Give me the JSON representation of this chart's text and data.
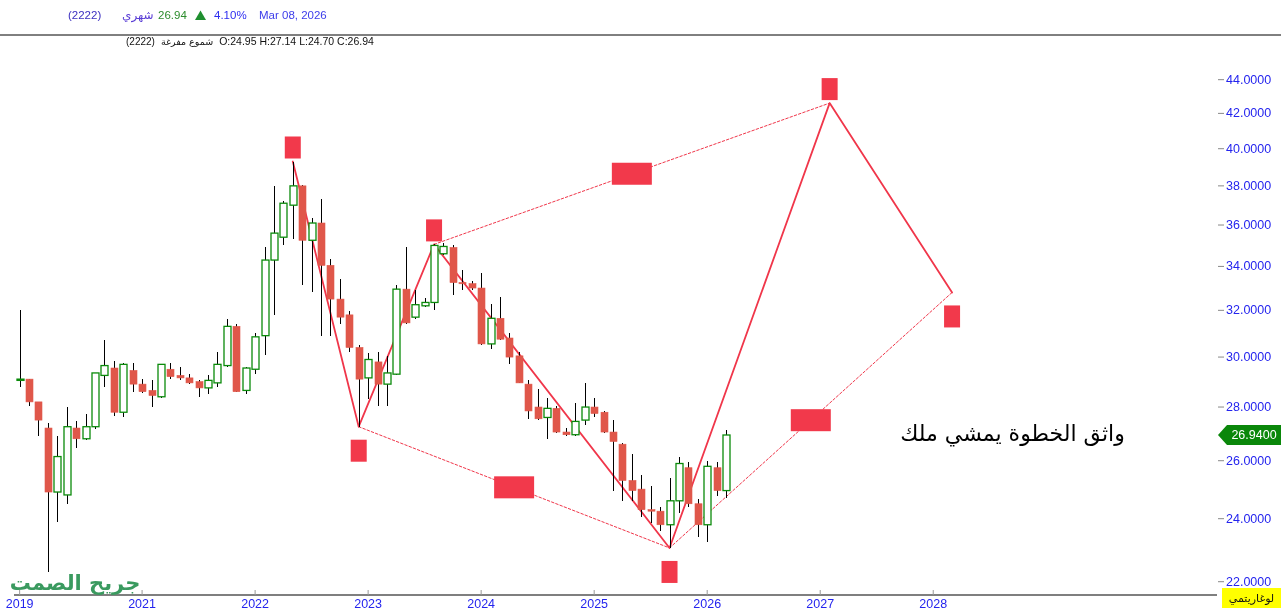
{
  "chart_data": {
    "type": "candlestick",
    "x": [
      "2019-12",
      "2020-01",
      "2020-02",
      "2020-03",
      "2020-04",
      "2020-05",
      "2020-06",
      "2020-07",
      "2020-08",
      "2020-09",
      "2020-10",
      "2020-11",
      "2020-12",
      "2021-01",
      "2021-02",
      "2021-03",
      "2021-04",
      "2021-05",
      "2021-06",
      "2021-07",
      "2021-08",
      "2021-09",
      "2021-10",
      "2021-11",
      "2021-12",
      "2022-01",
      "2022-02",
      "2022-03",
      "2022-04",
      "2022-05",
      "2022-06",
      "2022-07",
      "2022-08",
      "2022-09",
      "2022-10",
      "2022-11",
      "2022-12",
      "2023-01",
      "2023-02",
      "2023-03",
      "2023-04",
      "2023-05",
      "2023-06",
      "2023-07",
      "2023-08",
      "2023-09",
      "2023-10",
      "2023-11",
      "2023-12",
      "2024-01",
      "2024-02",
      "2024-03",
      "2024-04",
      "2024-05",
      "2024-06",
      "2024-07",
      "2024-08",
      "2024-09",
      "2024-10",
      "2024-11",
      "2024-12",
      "2025-01",
      "2025-02",
      "2025-03",
      "2025-04",
      "2025-05",
      "2025-06",
      "2025-07",
      "2025-08",
      "2025-09",
      "2025-10",
      "2025-11",
      "2025-12",
      "2026-01",
      "2026-02",
      "2026-03"
    ],
    "ohlc": [
      [
        29.05,
        32.0,
        28.8,
        29.1
      ],
      [
        29.1,
        29.1,
        28.05,
        28.2
      ],
      [
        28.2,
        28.2,
        26.9,
        27.5
      ],
      [
        27.2,
        27.4,
        22.3,
        24.9
      ],
      [
        24.9,
        26.9,
        23.9,
        26.15
      ],
      [
        24.8,
        28.0,
        24.5,
        27.25
      ],
      [
        27.2,
        27.45,
        26.45,
        26.8
      ],
      [
        26.8,
        27.75,
        26.75,
        27.25
      ],
      [
        27.25,
        29.35,
        27.15,
        29.35
      ],
      [
        29.25,
        30.7,
        28.8,
        29.65
      ],
      [
        29.55,
        29.85,
        27.65,
        27.8
      ],
      [
        27.8,
        29.75,
        27.6,
        29.7
      ],
      [
        29.45,
        29.75,
        28.6,
        28.9
      ],
      [
        28.9,
        29.1,
        28.55,
        28.6
      ],
      [
        28.65,
        29.05,
        28.0,
        28.45
      ],
      [
        28.4,
        29.7,
        28.35,
        29.7
      ],
      [
        29.5,
        29.75,
        29.1,
        29.2
      ],
      [
        29.25,
        29.6,
        29.05,
        29.15
      ],
      [
        29.15,
        29.3,
        28.9,
        28.95
      ],
      [
        29.0,
        29.05,
        28.4,
        28.75
      ],
      [
        28.75,
        29.25,
        28.5,
        29.05
      ],
      [
        28.95,
        30.2,
        28.8,
        29.7
      ],
      [
        29.65,
        31.6,
        29.6,
        31.3
      ],
      [
        31.3,
        31.4,
        28.6,
        28.6
      ],
      [
        28.65,
        29.6,
        28.5,
        29.55
      ],
      [
        29.5,
        31.0,
        29.3,
        30.85
      ],
      [
        30.9,
        34.9,
        30.1,
        34.3
      ],
      [
        34.3,
        38.0,
        31.8,
        35.6
      ],
      [
        35.4,
        37.2,
        35.0,
        37.1
      ],
      [
        37.0,
        39.3,
        35.3,
        38.0
      ],
      [
        38.0,
        38.05,
        33.15,
        35.25
      ],
      [
        35.25,
        36.35,
        32.8,
        36.1
      ],
      [
        36.1,
        37.3,
        30.9,
        34.05
      ],
      [
        34.05,
        34.35,
        30.9,
        32.5
      ],
      [
        32.5,
        33.4,
        31.4,
        31.7
      ],
      [
        31.8,
        31.95,
        30.2,
        30.4
      ],
      [
        30.4,
        30.5,
        27.25,
        29.1
      ],
      [
        29.15,
        30.15,
        28.3,
        29.9
      ],
      [
        29.8,
        30.2,
        28.05,
        28.9
      ],
      [
        28.9,
        30.05,
        28.05,
        29.35
      ],
      [
        29.3,
        33.15,
        29.25,
        32.95
      ],
      [
        32.95,
        34.9,
        31.4,
        31.45
      ],
      [
        31.7,
        32.9,
        31.6,
        32.25
      ],
      [
        32.2,
        32.55,
        32.15,
        32.35
      ],
      [
        32.35,
        35.05,
        32.0,
        35.0
      ],
      [
        34.6,
        35.1,
        34.55,
        34.95
      ],
      [
        34.9,
        35.0,
        32.7,
        33.25
      ],
      [
        33.25,
        33.85,
        32.9,
        33.2
      ],
      [
        33.2,
        33.3,
        32.9,
        33.0
      ],
      [
        33.0,
        33.7,
        30.5,
        30.55
      ],
      [
        30.55,
        32.3,
        30.35,
        31.65
      ],
      [
        31.65,
        32.6,
        30.7,
        30.75
      ],
      [
        30.8,
        31.0,
        29.7,
        30.0
      ],
      [
        30.05,
        30.2,
        28.95,
        28.95
      ],
      [
        28.9,
        29.05,
        27.55,
        27.85
      ],
      [
        28.0,
        28.7,
        27.5,
        27.55
      ],
      [
        27.6,
        28.35,
        26.8,
        27.95
      ],
      [
        27.95,
        28.05,
        27.0,
        27.05
      ],
      [
        27.05,
        27.2,
        26.9,
        26.95
      ],
      [
        26.95,
        28.15,
        26.9,
        27.45
      ],
      [
        27.5,
        28.95,
        27.3,
        28.0
      ],
      [
        28.0,
        28.35,
        27.6,
        27.75
      ],
      [
        27.8,
        27.85,
        27.0,
        27.05
      ],
      [
        27.05,
        27.5,
        24.95,
        26.7
      ],
      [
        26.6,
        26.65,
        24.6,
        25.3
      ],
      [
        25.3,
        26.25,
        24.6,
        24.95
      ],
      [
        25.0,
        25.5,
        24.05,
        24.3
      ],
      [
        24.3,
        25.1,
        23.85,
        24.25
      ],
      [
        24.25,
        24.4,
        23.6,
        23.8
      ],
      [
        23.8,
        25.4,
        23.05,
        24.6
      ],
      [
        24.6,
        26.15,
        24.2,
        25.9
      ],
      [
        25.75,
        25.95,
        24.4,
        24.5
      ],
      [
        24.5,
        24.65,
        23.4,
        23.8
      ],
      [
        23.8,
        26.0,
        23.25,
        25.8
      ],
      [
        25.75,
        25.95,
        24.75,
        24.95
      ],
      [
        24.95,
        27.14,
        24.7,
        26.94
      ]
    ],
    "colors": [
      "#0a8a0a",
      "#e0574a",
      "#e0574a",
      "#e0574a",
      "#0a8a0a",
      "#0a8a0a",
      "#e0574a",
      "#0a8a0a",
      "#0a8a0a",
      "#0a8a0a",
      "#e0574a",
      "#0a8a0a",
      "#e0574a",
      "#e0574a",
      "#e0574a",
      "#0a8a0a",
      "#e0574a",
      "#e0574a",
      "#e0574a",
      "#e0574a",
      "#0a8a0a",
      "#0a8a0a",
      "#0a8a0a",
      "#e0574a",
      "#0a8a0a",
      "#0a8a0a",
      "#0a8a0a",
      "#0a8a0a",
      "#0a8a0a",
      "#0a8a0a",
      "#e0574a",
      "#0a8a0a",
      "#e0574a",
      "#e0574a",
      "#e0574a",
      "#e0574a",
      "#e0574a",
      "#0a8a0a",
      "#e0574a",
      "#0a8a0a",
      "#0a8a0a",
      "#e0574a",
      "#0a8a0a",
      "#0a8a0a",
      "#0a8a0a",
      "#0a8a0a",
      "#e0574a",
      "#e0574a",
      "#e0574a",
      "#e0574a",
      "#0a8a0a",
      "#e0574a",
      "#e0574a",
      "#e0574a",
      "#e0574a",
      "#e0574a",
      "#0a8a0a",
      "#e0574a",
      "#e0574a",
      "#0a8a0a",
      "#0a8a0a",
      "#e0574a",
      "#e0574a",
      "#e0574a",
      "#e0574a",
      "#e0574a",
      "#e0574a",
      "#e0574a",
      "#e0574a",
      "#0a8a0a",
      "#0a8a0a",
      "#e0574a",
      "#e0574a",
      "#0a8a0a",
      "#e0574a",
      "#0a8a0a"
    ],
    "series": [
      {
        "type": "line",
        "x": [
          "2022-05",
          "2022-12",
          "2023-08",
          "2025-09",
          "2027-02",
          "2028-03"
        ],
        "values": [
          39.3,
          27.25,
          35.05,
          23.05,
          42.6,
          32.8
        ],
        "color": "#f0364a",
        "line_style": "solid"
      },
      {
        "type": "line",
        "x": [
          "2022-12",
          "2025-09"
        ],
        "values": [
          27.25,
          23.05
        ],
        "color": "#f0364a",
        "line_style": "dotted"
      },
      {
        "type": "line",
        "x": [
          "2023-08",
          "2027-02"
        ],
        "values": [
          35.05,
          42.6
        ],
        "color": "#f0364a",
        "line_style": "dotted"
      },
      {
        "type": "line",
        "x": [
          "2025-09",
          "2028-03"
        ],
        "values": [
          23.05,
          32.8
        ],
        "color": "#f0364a",
        "line_style": "dotted"
      }
    ],
    "xlim": [
      "2019-11-13",
      "2030-07-05"
    ],
    "xticks": [
      {
        "value": "2019-12",
        "label": "2019"
      },
      "2021",
      "2022",
      "2023",
      "2024",
      "2025",
      "2026",
      "2027",
      "2028"
    ],
    "ylim": [
      21.6,
      46.8
    ],
    "yticks": [
      {
        "value": 22,
        "label": "22.0000"
      },
      {
        "value": 24,
        "label": "24.0000"
      },
      {
        "value": 26,
        "label": "26.0000"
      },
      {
        "value": 28,
        "label": "28.0000"
      },
      {
        "value": 30,
        "label": "30.0000"
      },
      {
        "value": 32,
        "label": "32.0000"
      },
      {
        "value": 34,
        "label": "34.0000"
      },
      {
        "value": 36,
        "label": "36.0000"
      },
      {
        "value": 38,
        "label": "38.0000"
      },
      {
        "value": 40,
        "label": "40.0000"
      },
      {
        "value": 42,
        "label": "42.0000"
      },
      {
        "value": 44,
        "label": "44.0000"
      }
    ],
    "log": "y",
    "annotations": [
      "(2222)",
      "شهري",
      "26.94",
      "4.10%",
      "Mar 08, 2026",
      "(2222)",
      "شموع مفرغة",
      "O:24.95 H:27.14 L:24.70 C:26.94",
      "26.9400",
      "لوغاريتمي",
      "واثق الخطوة يمشي ملك",
      "جريح الصمت"
    ]
  }
}
